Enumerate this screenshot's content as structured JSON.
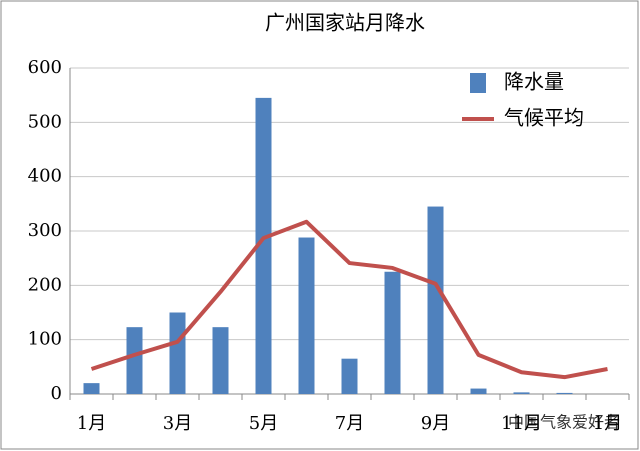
{
  "chart_data": {
    "type": "bar",
    "title": "广州国家站月降水",
    "categories": [
      "1月",
      null,
      "3月",
      null,
      "5月",
      null,
      "7月",
      null,
      "9月",
      null,
      "11月",
      null,
      "1月"
    ],
    "series": [
      {
        "name": "降水量",
        "type": "bar",
        "color": "#4f81bd",
        "values": [
          20,
          123,
          150,
          123,
          545,
          288,
          65,
          225,
          345,
          10,
          3,
          2,
          0
        ]
      },
      {
        "name": "气候平均",
        "type": "line",
        "color": "#c0504d",
        "values": [
          46,
          72,
          96,
          188,
          287,
          317,
          241,
          232,
          203,
          72,
          40,
          31,
          46
        ]
      }
    ],
    "ylim": [
      0,
      600
    ],
    "yticks": [
      0,
      100,
      200,
      300,
      400,
      500,
      600
    ],
    "grid": true,
    "legend": "top-right",
    "watermark": "中国气象爱好者"
  }
}
